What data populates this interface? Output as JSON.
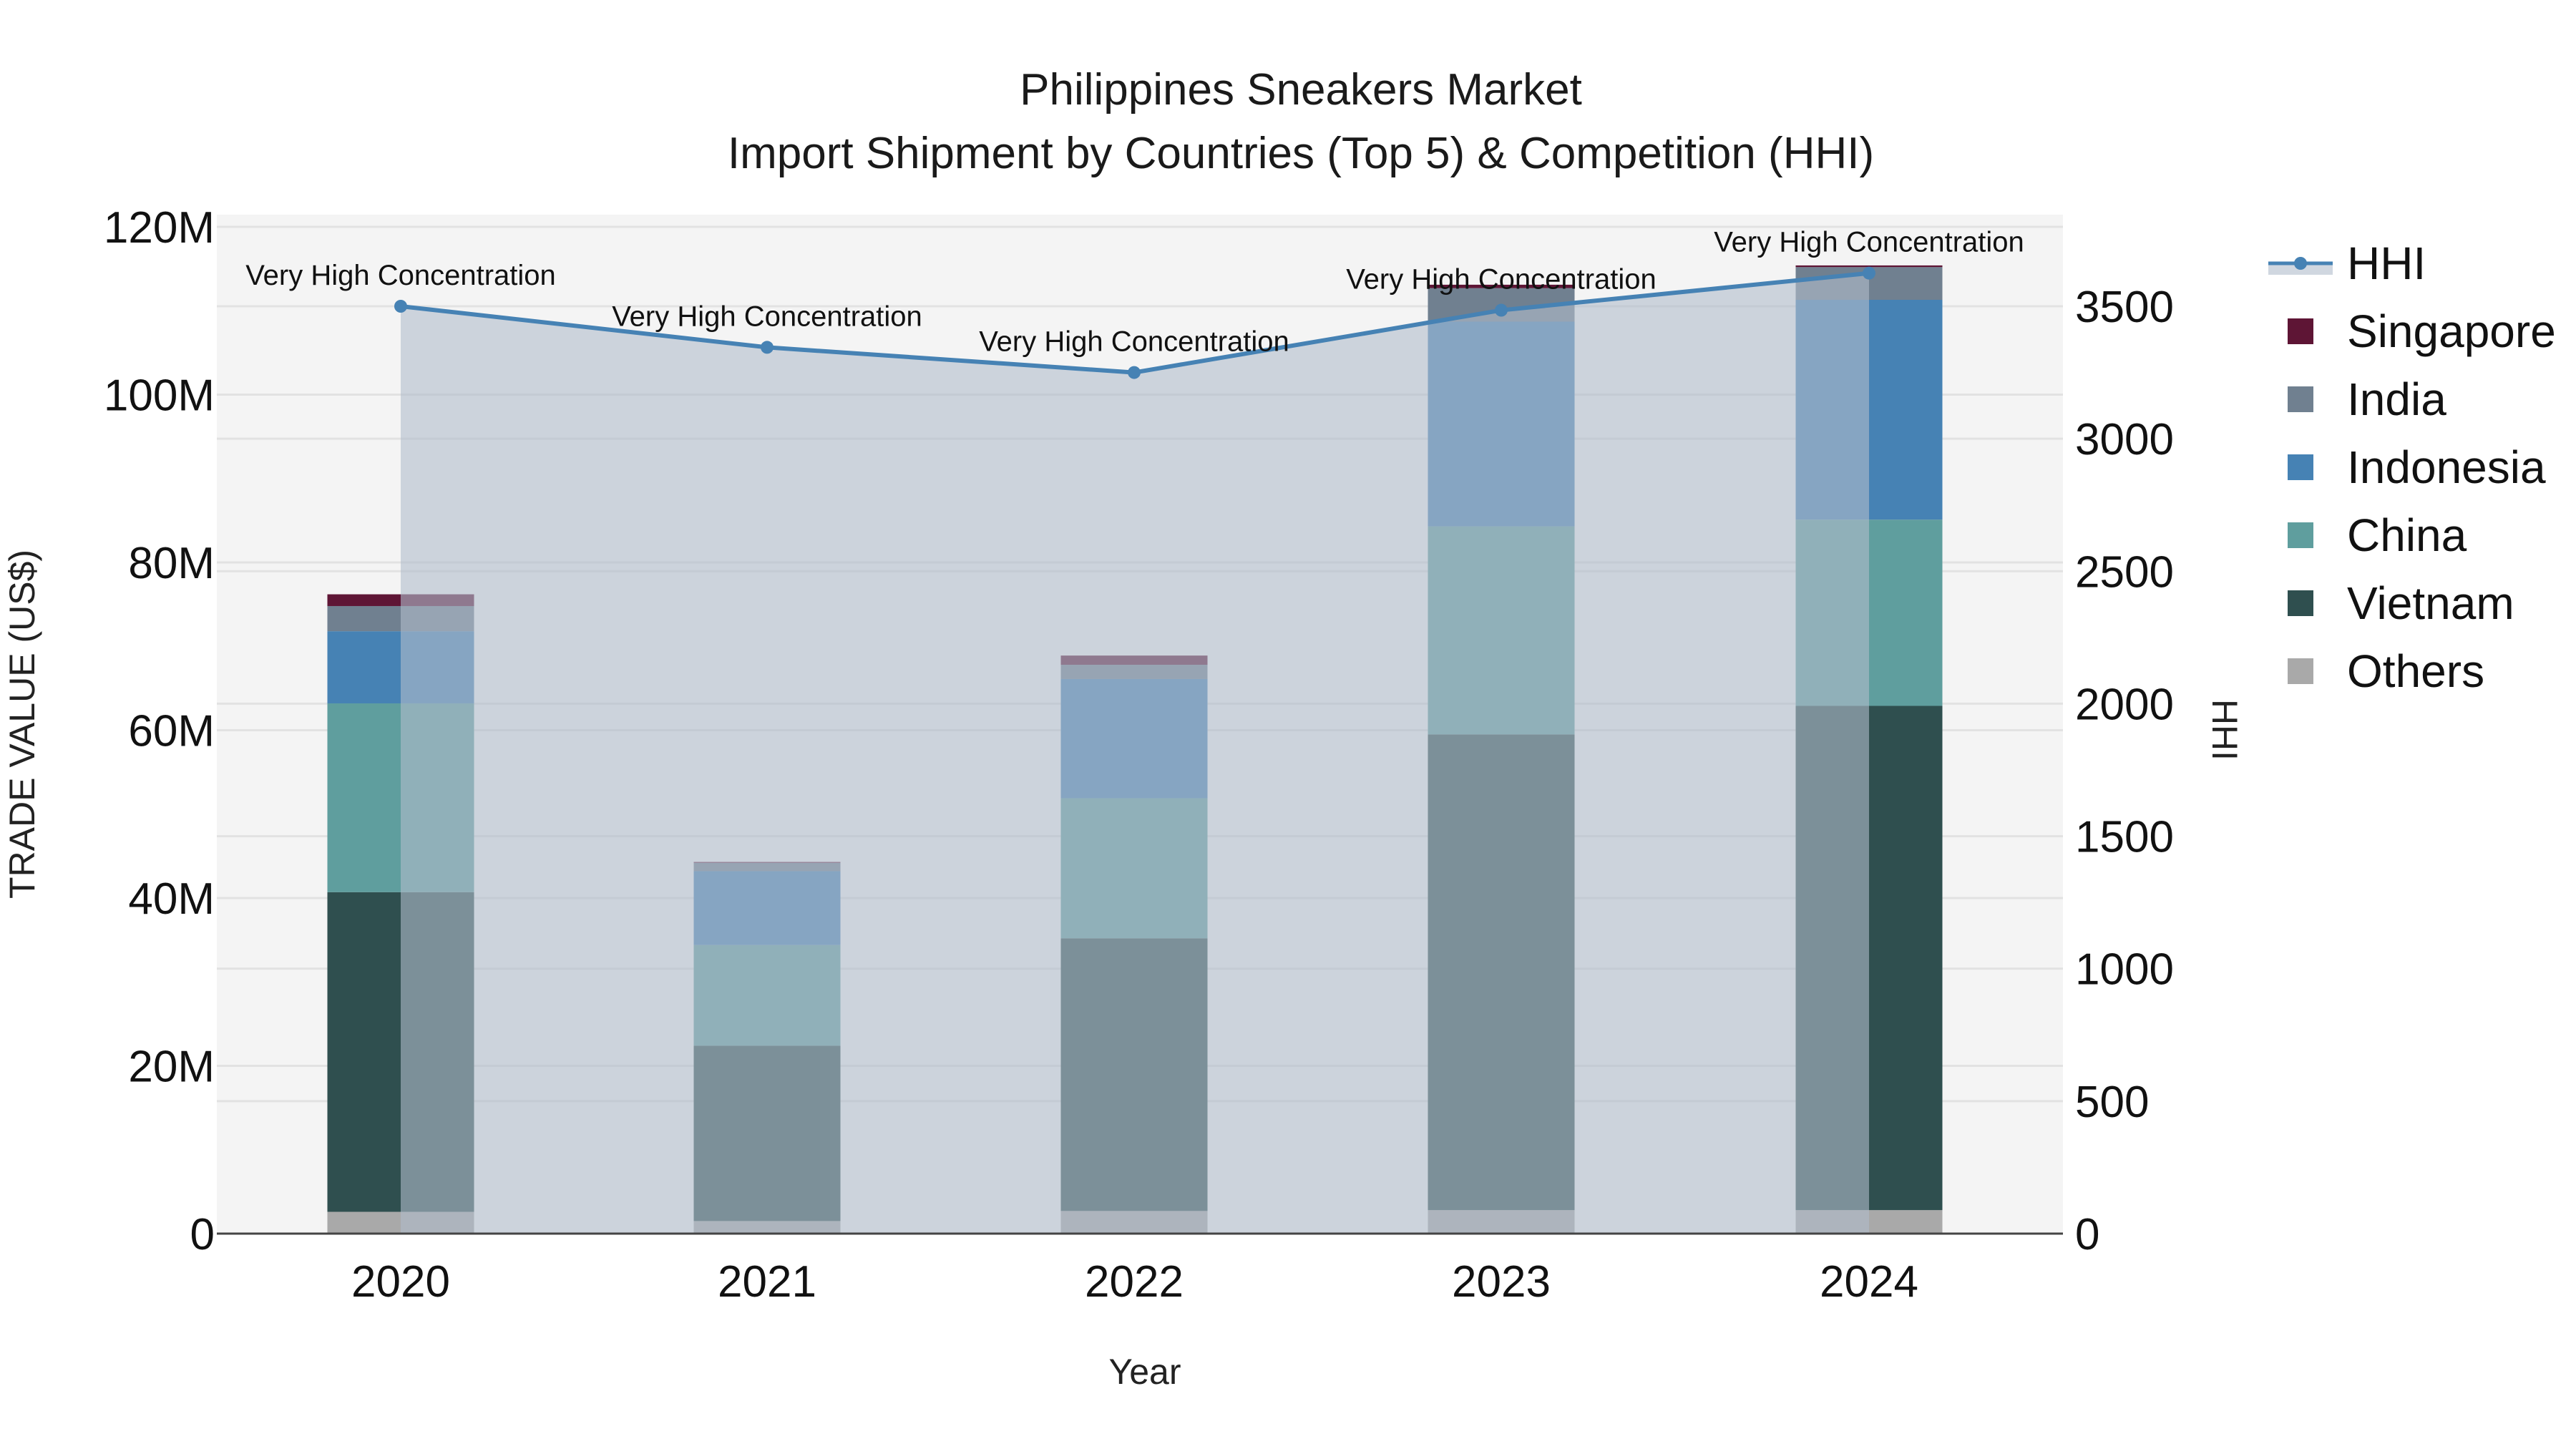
{
  "title": {
    "line1": "Philippines Sneakers Market",
    "line2": "Import Shipment by Countries (Top 5) & Competition (HHI)"
  },
  "axes": {
    "x_title": "Year",
    "y_left_title": "TRADE VALUE (US$)",
    "y_right_title": "HHI",
    "y_left_ticks": [
      "0",
      "20M",
      "40M",
      "60M",
      "80M",
      "100M",
      "120M"
    ],
    "y_right_ticks": [
      "0",
      "500",
      "1000",
      "1500",
      "2000",
      "2500",
      "3000",
      "3500"
    ]
  },
  "legend": [
    {
      "name": "HHI",
      "color": "#4682b4",
      "type": "line"
    },
    {
      "name": "Singapore",
      "color": "#5e1535",
      "type": "bar"
    },
    {
      "name": "India",
      "color": "#708090",
      "type": "bar"
    },
    {
      "name": "Indonesia",
      "color": "#4682b4",
      "type": "bar"
    },
    {
      "name": "China",
      "color": "#5f9e9e",
      "type": "bar"
    },
    {
      "name": "Vietnam",
      "color": "#2f4f4f",
      "type": "bar"
    },
    {
      "name": "Others",
      "color": "#a9a9a9",
      "type": "bar"
    }
  ],
  "colors": {
    "plot_bg": "#f4f4f4",
    "grid": "#e2e2e2",
    "hhi_line": "#4682b4",
    "hhi_fill": "rgba(176,188,204,0.6)"
  },
  "chart_data": {
    "type": "bar",
    "subtype": "stacked bar + line (secondary axis, area fill)",
    "title": "Philippines Sneakers Market — Import Shipment by Countries (Top 5) & Competition (HHI)",
    "xlabel": "Year",
    "ylabel": "TRADE VALUE (US$)",
    "y2label": "HHI",
    "categories": [
      "2020",
      "2021",
      "2022",
      "2023",
      "2024"
    ],
    "ylim": [
      0,
      120000000
    ],
    "y2lim": [
      0,
      3800
    ],
    "units": "US$ (millions shown as M)",
    "series": [
      {
        "name": "Others",
        "axis": "y",
        "values": [
          2.6,
          1.5,
          2.7,
          2.8,
          2.8
        ]
      },
      {
        "name": "Vietnam",
        "axis": "y",
        "values": [
          38.1,
          20.9,
          32.5,
          56.7,
          60.1
        ]
      },
      {
        "name": "China",
        "axis": "y",
        "values": [
          22.5,
          12.0,
          16.7,
          24.8,
          22.2
        ]
      },
      {
        "name": "Indonesia",
        "axis": "y",
        "values": [
          8.6,
          8.8,
          14.2,
          24.4,
          26.2
        ]
      },
      {
        "name": "India",
        "axis": "y",
        "values": [
          3.0,
          1.0,
          1.7,
          4.0,
          3.9
        ]
      },
      {
        "name": "Singapore",
        "axis": "y",
        "values": [
          1.4,
          0.1,
          1.1,
          0.4,
          0.2
        ]
      },
      {
        "name": "HHI",
        "axis": "y2",
        "type": "line",
        "values": [
          3500,
          3345,
          3250,
          3485,
          3625
        ]
      }
    ],
    "totals_millions": [
      76.2,
      44.3,
      68.9,
      113.1,
      115.4
    ],
    "annotations": [
      "Very High Concentration",
      "Very High Concentration",
      "Very High Concentration",
      "Very High Concentration",
      "Very High Concentration"
    ],
    "grid": true,
    "legend_position": "right"
  }
}
